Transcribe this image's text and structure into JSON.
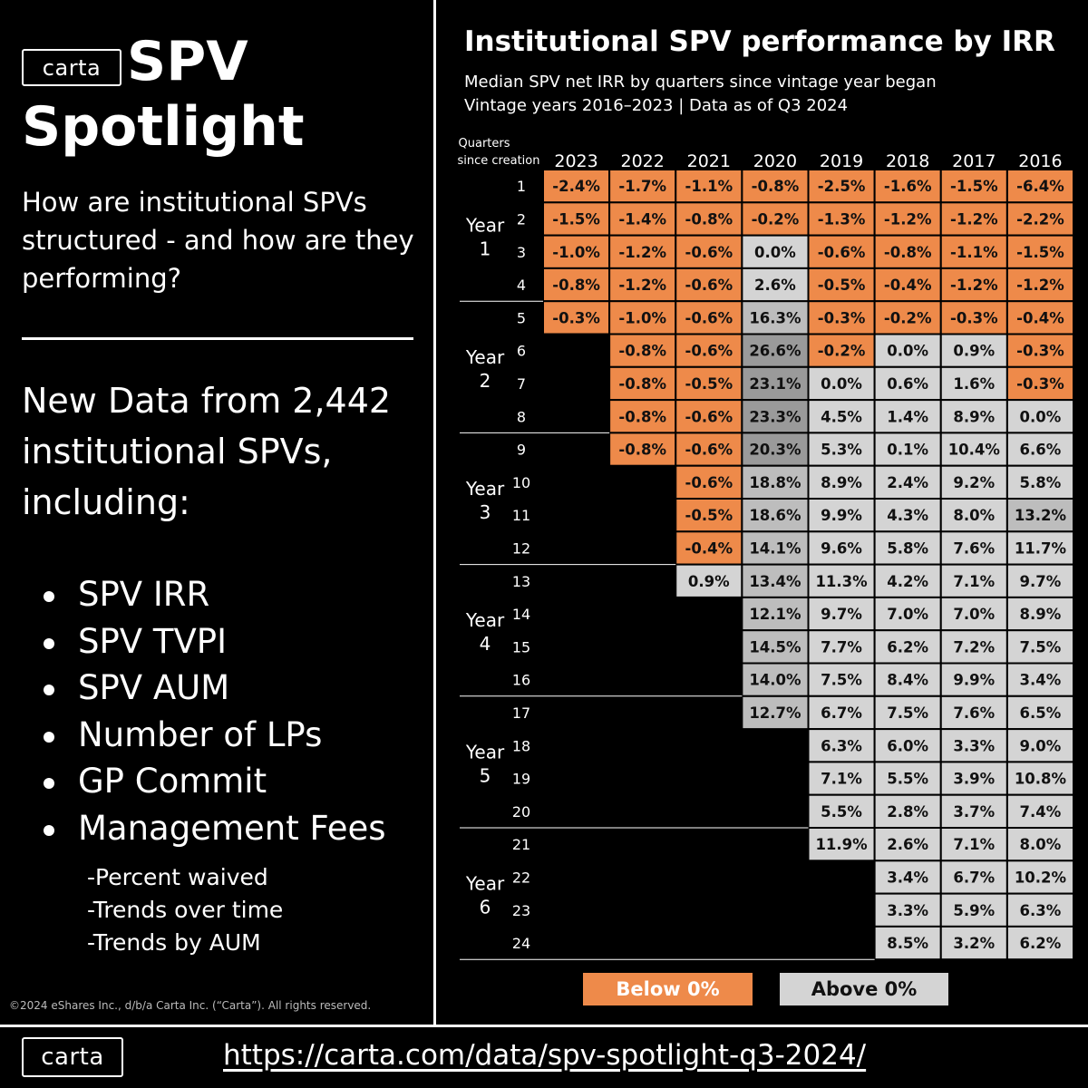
{
  "brand": {
    "logo_text": "carta"
  },
  "left": {
    "title_line1": "SPV",
    "title_line2": "Spotlight",
    "question": "How are institutional SPVs structured - and how are they performing?",
    "new_data": "New Data from 2,442 institutional SPVs, including:",
    "bullets": [
      "SPV IRR",
      "SPV TVPI",
      "SPV AUM",
      "Number of LPs",
      "GP Commit",
      "Management Fees"
    ],
    "sub_bullets": [
      "-Percent waived",
      "-Trends over time",
      "-Trends by AUM"
    ],
    "copyright": "©2024 eShares Inc., d/b/a Carta Inc. (“Carta”). All rights reserved."
  },
  "footer": {
    "url": "https://carta.com/data/spv-spotlight-q3-2024/"
  },
  "colors": {
    "negative": "#ee8a4a",
    "positive_light": "#d4d4d4",
    "positive_mid": "#bdbdbd",
    "positive_dark": "#9a9a9a",
    "background": "#000000",
    "text_dark": "#111111"
  },
  "chart_data": {
    "type": "table",
    "title": "Institutional SPV performance by IRR",
    "subtitle_lines": [
      "Median SPV net IRR by quarters since vintage year began",
      "Vintage years 2016–2023  | Data as of Q3 2024"
    ],
    "row_header_label": [
      "Quarters",
      "since creation"
    ],
    "vintages": [
      "2023",
      "2022",
      "2021",
      "2020",
      "2019",
      "2018",
      "2017",
      "2016"
    ],
    "quarters": [
      "1",
      "2",
      "3",
      "4",
      "5",
      "6",
      "7",
      "8",
      "9",
      "10",
      "11",
      "12",
      "13",
      "14",
      "15",
      "16",
      "17",
      "18",
      "19",
      "20",
      "21",
      "22",
      "23",
      "24"
    ],
    "year_groups": [
      {
        "label": [
          "Year",
          "1"
        ],
        "quarters": [
          "1",
          "2",
          "3",
          "4"
        ]
      },
      {
        "label": [
          "Year",
          "2"
        ],
        "quarters": [
          "5",
          "6",
          "7",
          "8"
        ]
      },
      {
        "label": [
          "Year",
          "3"
        ],
        "quarters": [
          "9",
          "10",
          "11",
          "12"
        ]
      },
      {
        "label": [
          "Year",
          "4"
        ],
        "quarters": [
          "13",
          "14",
          "15",
          "16"
        ]
      },
      {
        "label": [
          "Year",
          "5"
        ],
        "quarters": [
          "17",
          "18",
          "19",
          "20"
        ]
      },
      {
        "label": [
          "Year",
          "6"
        ],
        "quarters": [
          "21",
          "22",
          "23",
          "24"
        ]
      }
    ],
    "values": [
      [
        "-2.4%",
        "-1.7%",
        "-1.1%",
        "-0.8%",
        "-2.5%",
        "-1.6%",
        "-1.5%",
        "-6.4%"
      ],
      [
        "-1.5%",
        "-1.4%",
        "-0.8%",
        "-0.2%",
        "-1.3%",
        "-1.2%",
        "-1.2%",
        "-2.2%"
      ],
      [
        "-1.0%",
        "-1.2%",
        "-0.6%",
        "0.0%",
        "-0.6%",
        "-0.8%",
        "-1.1%",
        "-1.5%"
      ],
      [
        "-0.8%",
        "-1.2%",
        "-0.6%",
        "2.6%",
        "-0.5%",
        "-0.4%",
        "-1.2%",
        "-1.2%"
      ],
      [
        "-0.3%",
        "-1.0%",
        "-0.6%",
        "16.3%",
        "-0.3%",
        "-0.2%",
        "-0.3%",
        "-0.4%"
      ],
      [
        null,
        "-0.8%",
        "-0.6%",
        "26.6%",
        "-0.2%",
        "0.0%",
        "0.9%",
        "-0.3%"
      ],
      [
        null,
        "-0.8%",
        "-0.5%",
        "23.1%",
        "0.0%",
        "0.6%",
        "1.6%",
        "-0.3%"
      ],
      [
        null,
        "-0.8%",
        "-0.6%",
        "23.3%",
        "4.5%",
        "1.4%",
        "8.9%",
        "0.0%"
      ],
      [
        null,
        "-0.8%",
        "-0.6%",
        "20.3%",
        "5.3%",
        "0.1%",
        "10.4%",
        "6.6%"
      ],
      [
        null,
        null,
        "-0.6%",
        "18.8%",
        "8.9%",
        "2.4%",
        "9.2%",
        "5.8%"
      ],
      [
        null,
        null,
        "-0.5%",
        "18.6%",
        "9.9%",
        "4.3%",
        "8.0%",
        "13.2%"
      ],
      [
        null,
        null,
        "-0.4%",
        "14.1%",
        "9.6%",
        "5.8%",
        "7.6%",
        "11.7%"
      ],
      [
        null,
        null,
        "0.9%",
        "13.4%",
        "11.3%",
        "4.2%",
        "7.1%",
        "9.7%"
      ],
      [
        null,
        null,
        null,
        "12.1%",
        "9.7%",
        "7.0%",
        "7.0%",
        "8.9%"
      ],
      [
        null,
        null,
        null,
        "14.5%",
        "7.7%",
        "6.2%",
        "7.2%",
        "7.5%"
      ],
      [
        null,
        null,
        null,
        "14.0%",
        "7.5%",
        "8.4%",
        "9.9%",
        "3.4%"
      ],
      [
        null,
        null,
        null,
        "12.7%",
        "6.7%",
        "7.5%",
        "7.6%",
        "6.5%"
      ],
      [
        null,
        null,
        null,
        null,
        "6.3%",
        "6.0%",
        "3.3%",
        "9.0%"
      ],
      [
        null,
        null,
        null,
        null,
        "7.1%",
        "5.5%",
        "3.9%",
        "10.8%"
      ],
      [
        null,
        null,
        null,
        null,
        "5.5%",
        "2.8%",
        "3.7%",
        "7.4%"
      ],
      [
        null,
        null,
        null,
        null,
        "11.9%",
        "2.6%",
        "7.1%",
        "8.0%"
      ],
      [
        null,
        null,
        null,
        null,
        null,
        "3.4%",
        "6.7%",
        "10.2%"
      ],
      [
        null,
        null,
        null,
        null,
        null,
        "3.3%",
        "5.9%",
        "6.3%"
      ],
      [
        null,
        null,
        null,
        null,
        null,
        "8.5%",
        "3.2%",
        "6.2%"
      ]
    ],
    "legend": [
      {
        "label": "Below 0%",
        "color": "#ee8a4a"
      },
      {
        "label": "Above 0%",
        "color": "#d4d4d4"
      }
    ]
  }
}
